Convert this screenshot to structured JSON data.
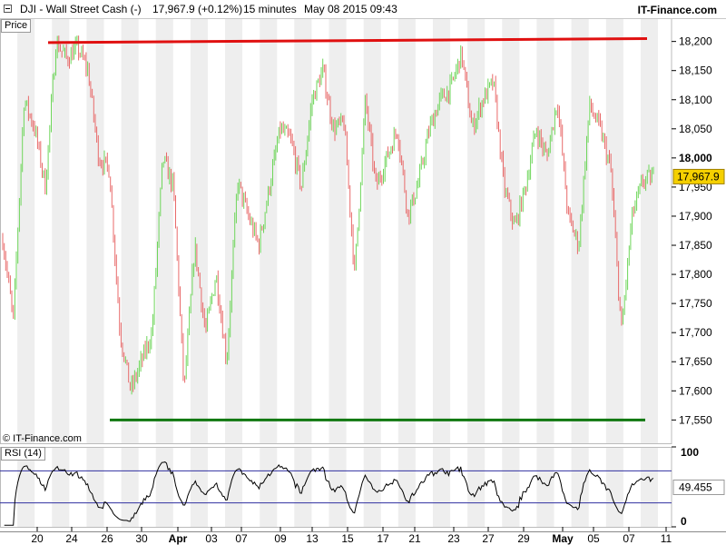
{
  "header": {
    "instrument": "DJI - Wall Street Cash (-)",
    "quote": "17,967.9 (+0.12%)",
    "timeframe": "15 minutes",
    "datetime": "May 08 2015 09:43",
    "brand": "IT-Finance.com"
  },
  "price_panel": {
    "label": "Price",
    "copyright": "© IT-Finance.com"
  },
  "rsi_panel": {
    "label": "RSI (14)"
  },
  "colors": {
    "up": "#6ed65a",
    "down": "#e86a6a",
    "resistance": "#e01010",
    "support": "#107810",
    "rsi_line": "#000000",
    "rsi_bands": "#3030a0",
    "current_price_tag": "#f5d000",
    "stripe": "#eeeeee"
  },
  "chart_data": [
    {
      "type": "candlestick",
      "ylim": [
        17510,
        18240
      ],
      "yticks": [
        17550,
        17600,
        17650,
        17700,
        17750,
        17800,
        17850,
        17900,
        17950,
        18000,
        18050,
        18100,
        18150,
        18200
      ],
      "ytick_labels": [
        "17,550",
        "17,600",
        "17,650",
        "17,700",
        "17,750",
        "17,800",
        "17,850",
        "17,900",
        "17,950",
        "18,000",
        "18,050",
        "18,100",
        "18,150",
        "18,200"
      ],
      "xtick_labels": [
        "20",
        "24",
        "26",
        "30",
        "Apr",
        "03",
        "07",
        "09",
        "13",
        "15",
        "17",
        "21",
        "23",
        "27",
        "29",
        "May",
        "05",
        "07",
        "11"
      ],
      "x": [
        "03-18",
        "03-19",
        "03-20",
        "03-23",
        "03-24",
        "03-25",
        "03-26",
        "03-27",
        "03-30",
        "03-31",
        "04-01",
        "04-02",
        "04-03",
        "04-06",
        "04-07",
        "04-08",
        "04-09",
        "04-10",
        "04-13",
        "04-14",
        "04-15",
        "04-16",
        "04-17",
        "04-20",
        "04-21",
        "04-22",
        "04-23",
        "04-24",
        "04-27",
        "04-28",
        "04-29",
        "04-30",
        "05-01",
        "05-04",
        "05-05",
        "05-06",
        "05-07",
        "05-08"
      ],
      "close_path": [
        17860,
        17720,
        18100,
        18050,
        17950,
        18200,
        18170,
        18190,
        18150,
        18000,
        17980,
        17700,
        17600,
        17650,
        17700,
        18000,
        17950,
        17600,
        17850,
        17700,
        17800,
        17650,
        17960,
        17900,
        17850,
        17950,
        18050,
        18030,
        17950,
        18100,
        18150,
        18050,
        18060,
        17800,
        18100,
        17950,
        18000,
        18050,
        17900,
        17960,
        18050,
        18100,
        18120,
        18180,
        18050,
        18100,
        18130,
        17950,
        17880,
        17950,
        18050,
        18000,
        18100,
        17900,
        17850,
        18090,
        18050,
        17980,
        17700,
        17900,
        17960,
        17968
      ],
      "high": 18210,
      "low": 17560,
      "lines": [
        {
          "name": "resistance",
          "from": 18198,
          "to": 18205
        },
        {
          "name": "support",
          "from": 17550,
          "to": 17550
        }
      ],
      "current_price_label": "17,967.9"
    },
    {
      "type": "line",
      "name": "RSI (14)",
      "ylim": [
        0,
        100
      ],
      "yticks": [
        0,
        100
      ],
      "ytick_labels": [
        "0",
        "100"
      ],
      "bands": [
        30,
        70
      ],
      "current_label": "49.455",
      "current": 49.455
    }
  ]
}
